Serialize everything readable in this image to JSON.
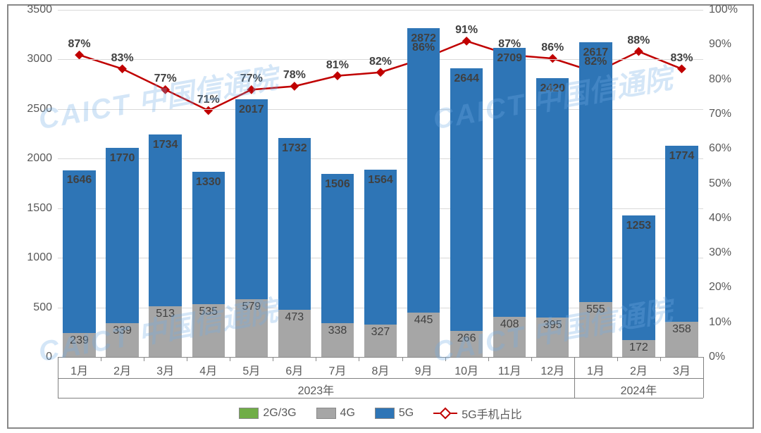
{
  "chart": {
    "type": "stacked-bar-with-line",
    "background_color": "#ffffff",
    "border_color": "#888888",
    "grid_color": "#d9d9d9",
    "axis_label_color": "#595959",
    "value_label_color": "#404040",
    "value_label_fontsize": 16,
    "axis_fontsize": 16,
    "y_left": {
      "min": 0,
      "max": 3500,
      "step": 500
    },
    "y_right": {
      "min": 0,
      "max": 100,
      "step": 10,
      "suffix": "%"
    },
    "series_colors": {
      "s1": "#70ad47",
      "s2": "#a6a6a6",
      "s3": "#2e75b6",
      "line": "#c00000"
    },
    "series_names": {
      "s1": "2G/3G",
      "s2": "4G",
      "s3": "5G",
      "line": "5G手机占比"
    },
    "bar_width_pct": 76,
    "line_width": 2.5,
    "marker": "diamond",
    "marker_size": 9,
    "categories": [
      "1月",
      "2月",
      "3月",
      "4月",
      "5月",
      "6月",
      "7月",
      "8月",
      "9月",
      "10月",
      "11月",
      "12月",
      "1月",
      "2月",
      "3月"
    ],
    "year_groups": [
      {
        "label": "2023年",
        "start": 0,
        "end": 12
      },
      {
        "label": "2024年",
        "start": 12,
        "end": 15
      }
    ],
    "data": {
      "s1": [
        0,
        0,
        0,
        0,
        0,
        0,
        0,
        0,
        0,
        0,
        0,
        0,
        0,
        0,
        0
      ],
      "s2": [
        239,
        339,
        513,
        535,
        579,
        473,
        338,
        327,
        445,
        266,
        408,
        395,
        555,
        172,
        358
      ],
      "s3": [
        1646,
        1770,
        1734,
        1330,
        2017,
        1732,
        1506,
        1564,
        2872,
        2644,
        2709,
        2420,
        2617,
        1253,
        1774
      ],
      "line_pct": [
        87,
        83,
        77,
        71,
        77,
        78,
        81,
        82,
        86,
        91,
        87,
        86,
        82,
        88,
        83
      ]
    },
    "watermark": {
      "en": "CAICT",
      "zh": " 中国信通院"
    }
  }
}
